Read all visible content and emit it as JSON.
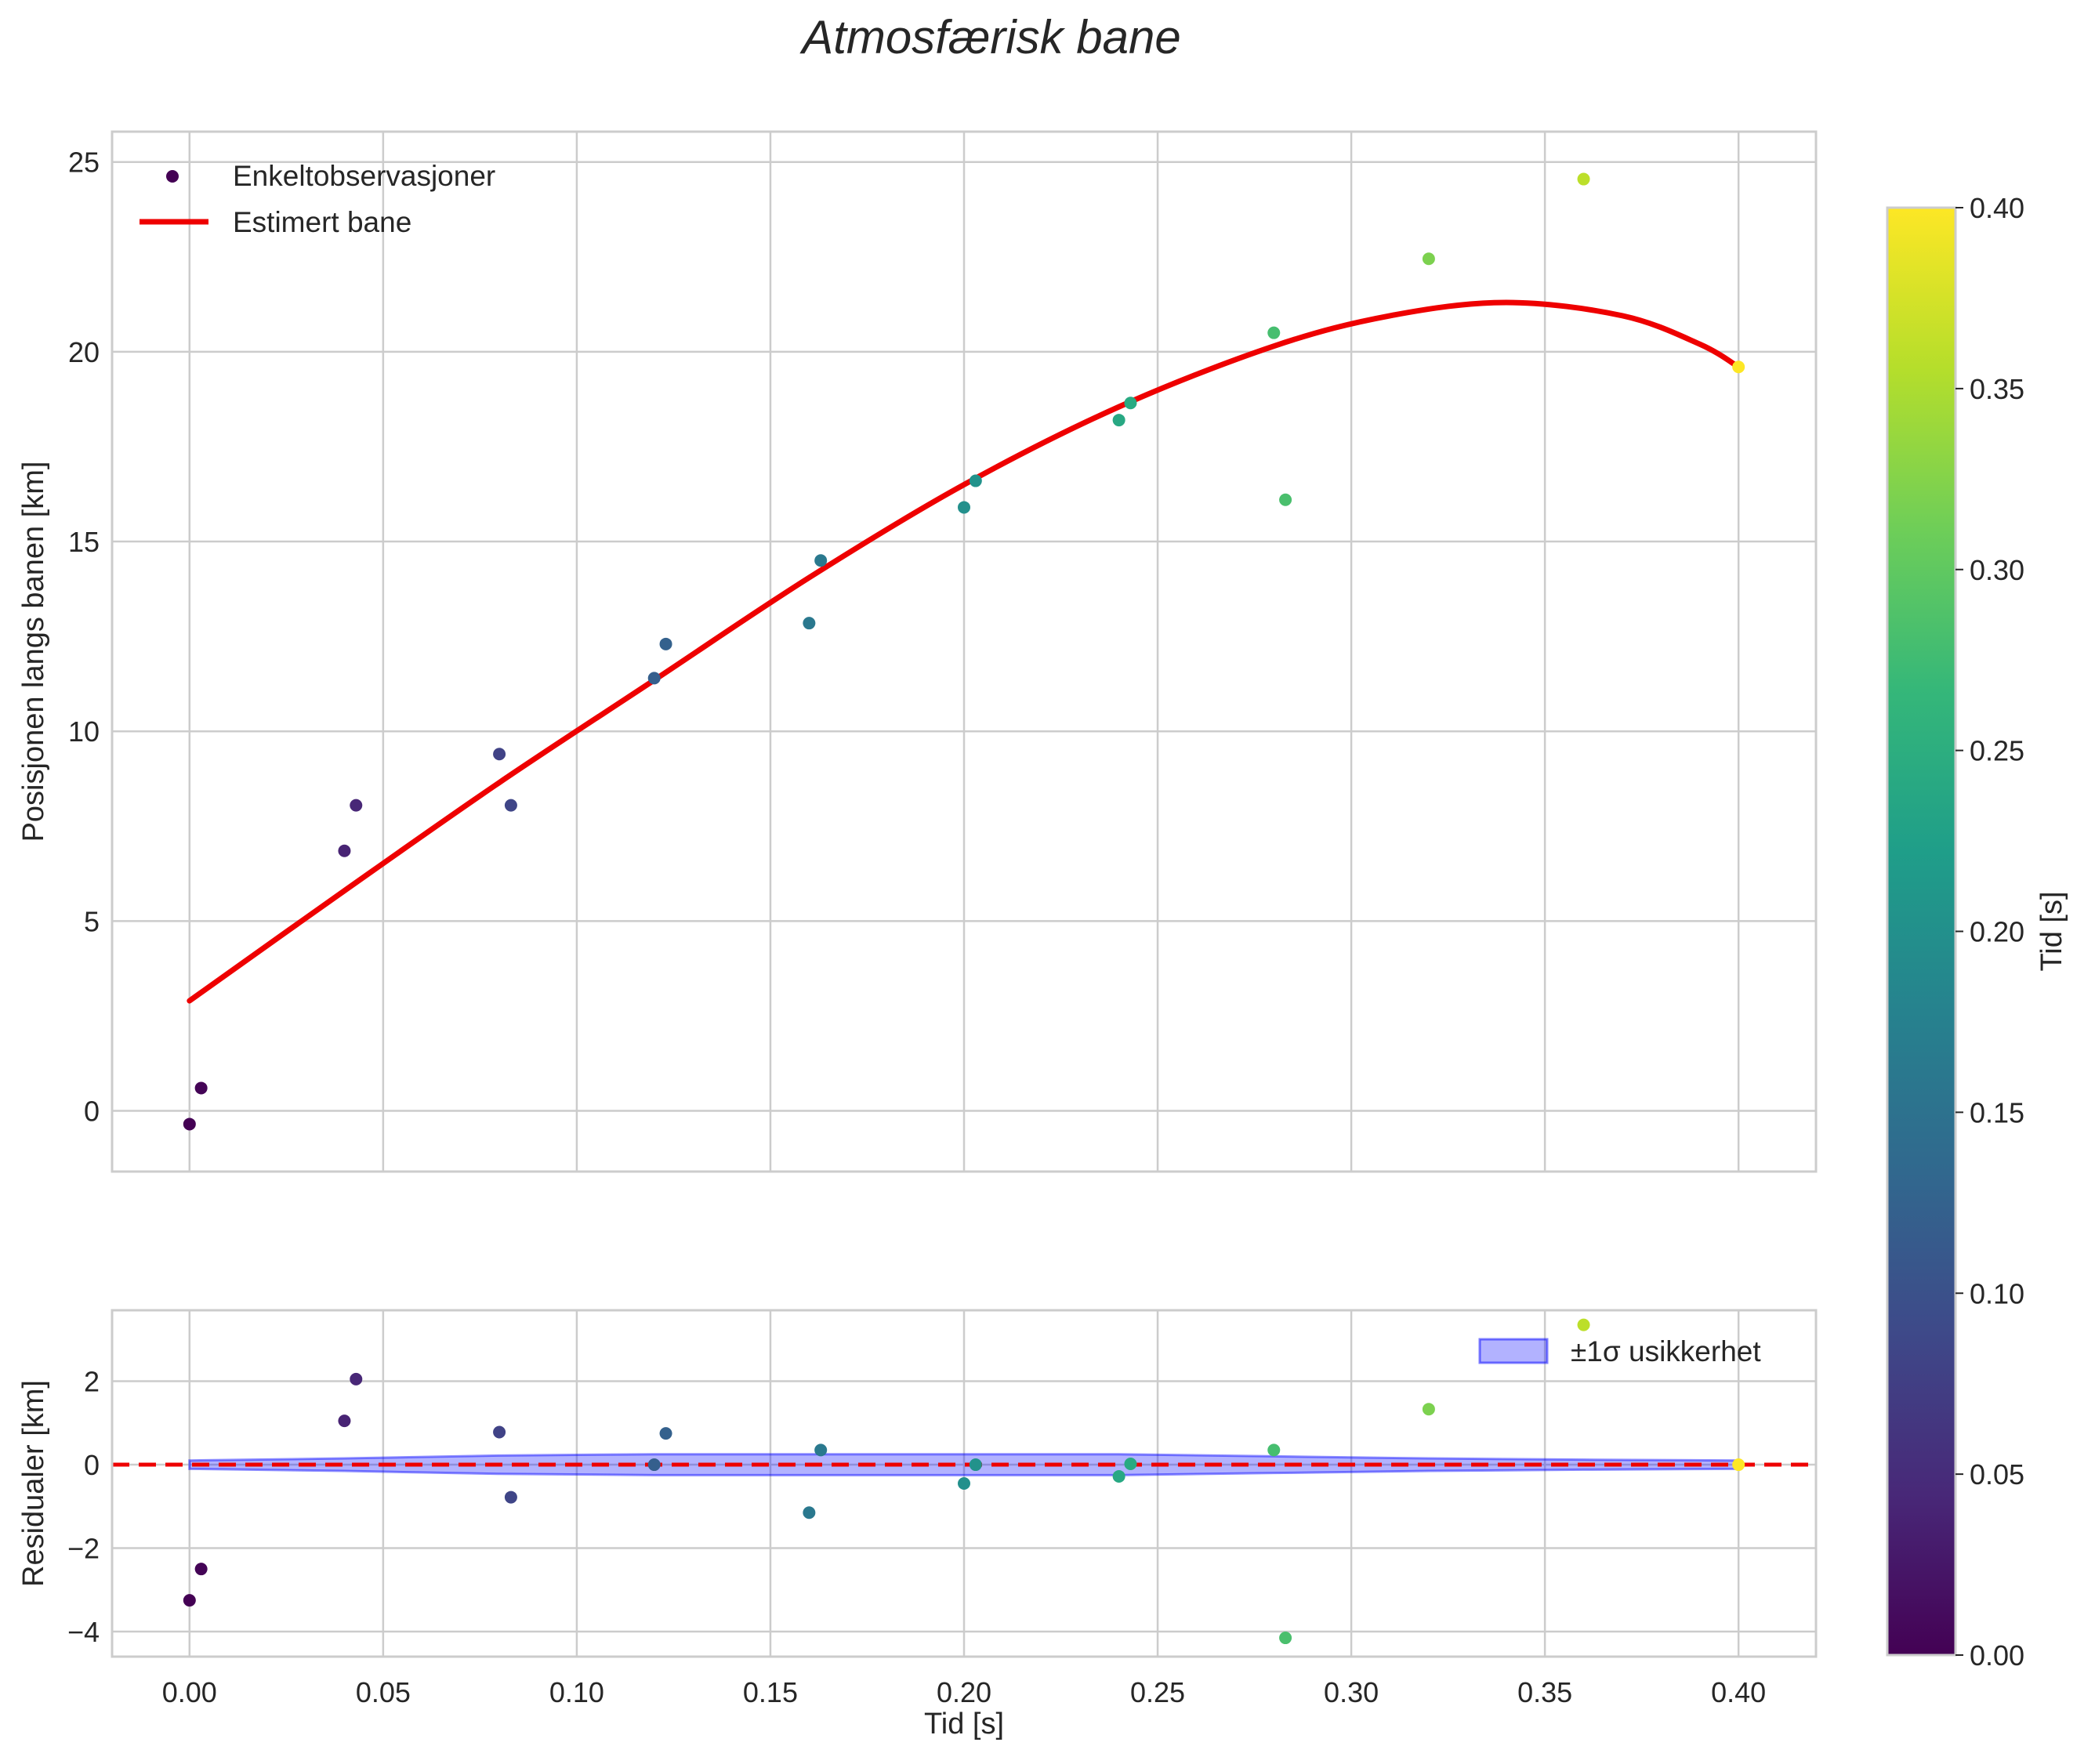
{
  "chart_data": {
    "type": "scatter",
    "title": "Atmosfærisk bane",
    "xlabel": "Tid [s]",
    "x_ticks": [
      "0.00",
      "0.05",
      "0.10",
      "0.15",
      "0.20",
      "0.25",
      "0.30",
      "0.35",
      "0.40"
    ],
    "xlim": [
      -0.02,
      0.42
    ],
    "grid": true,
    "main_panel": {
      "ylabel": "Posisjonen langs banen [km]",
      "ylim": [
        -1.6,
        25.8
      ],
      "y_ticks": [
        "0",
        "5",
        "10",
        "15",
        "20",
        "25"
      ],
      "legend": {
        "position": "upper left",
        "entries": [
          "Enkeltobservasjoner",
          "Estimert bane"
        ]
      },
      "observations": {
        "name": "Enkeltobservasjoner",
        "points": [
          {
            "t": 0.0,
            "y": -0.35
          },
          {
            "t": 0.003,
            "y": 0.6
          },
          {
            "t": 0.04,
            "y": 6.85
          },
          {
            "t": 0.043,
            "y": 8.05
          },
          {
            "t": 0.08,
            "y": 9.4
          },
          {
            "t": 0.083,
            "y": 8.05
          },
          {
            "t": 0.12,
            "y": 11.4
          },
          {
            "t": 0.123,
            "y": 12.3
          },
          {
            "t": 0.16,
            "y": 12.85
          },
          {
            "t": 0.163,
            "y": 14.5
          },
          {
            "t": 0.2,
            "y": 15.9
          },
          {
            "t": 0.203,
            "y": 16.6
          },
          {
            "t": 0.24,
            "y": 18.2
          },
          {
            "t": 0.243,
            "y": 18.65
          },
          {
            "t": 0.28,
            "y": 20.5
          },
          {
            "t": 0.283,
            "y": 16.1
          },
          {
            "t": 0.32,
            "y": 22.45
          },
          {
            "t": 0.36,
            "y": 24.55
          },
          {
            "t": 0.4,
            "y": 19.6
          }
        ]
      },
      "fit": {
        "name": "Estimert bane",
        "color": "#ee0000",
        "points": [
          {
            "t": 0.0,
            "y": 2.9
          },
          {
            "t": 0.04,
            "y": 5.8
          },
          {
            "t": 0.08,
            "y": 8.65
          },
          {
            "t": 0.12,
            "y": 11.35
          },
          {
            "t": 0.16,
            "y": 14.05
          },
          {
            "t": 0.2,
            "y": 16.5
          },
          {
            "t": 0.24,
            "y": 18.55
          },
          {
            "t": 0.28,
            "y": 20.15
          },
          {
            "t": 0.31,
            "y": 20.95
          },
          {
            "t": 0.34,
            "y": 21.3
          },
          {
            "t": 0.37,
            "y": 20.95
          },
          {
            "t": 0.39,
            "y": 20.2
          },
          {
            "t": 0.4,
            "y": 19.6
          }
        ]
      }
    },
    "residual_panel": {
      "ylabel": "Residualer [km]",
      "ylim": [
        -4.6,
        3.7
      ],
      "y_ticks": [
        "2",
        "0",
        "−2",
        "−4"
      ],
      "zero_line_color": "#ee0000",
      "band_color": "#0000ff",
      "legend": {
        "position": "upper right",
        "entries": [
          "±1σ usikkerhet"
        ]
      },
      "band": [
        {
          "t": 0.0,
          "s": 0.1
        },
        {
          "t": 0.04,
          "s": 0.15
        },
        {
          "t": 0.08,
          "s": 0.22
        },
        {
          "t": 0.12,
          "s": 0.25
        },
        {
          "t": 0.16,
          "s": 0.25
        },
        {
          "t": 0.2,
          "s": 0.25
        },
        {
          "t": 0.24,
          "s": 0.25
        },
        {
          "t": 0.28,
          "s": 0.2
        },
        {
          "t": 0.32,
          "s": 0.15
        },
        {
          "t": 0.36,
          "s": 0.12
        },
        {
          "t": 0.4,
          "s": 0.1
        }
      ],
      "points": [
        {
          "t": 0.0,
          "r": -3.25
        },
        {
          "t": 0.003,
          "r": -2.5
        },
        {
          "t": 0.04,
          "r": 1.05
        },
        {
          "t": 0.043,
          "r": 2.05
        },
        {
          "t": 0.08,
          "r": 0.78
        },
        {
          "t": 0.083,
          "r": -0.78
        },
        {
          "t": 0.12,
          "r": 0.0
        },
        {
          "t": 0.123,
          "r": 0.75
        },
        {
          "t": 0.16,
          "r": -1.15
        },
        {
          "t": 0.163,
          "r": 0.35
        },
        {
          "t": 0.2,
          "r": -0.45
        },
        {
          "t": 0.203,
          "r": 0.0
        },
        {
          "t": 0.24,
          "r": -0.28
        },
        {
          "t": 0.243,
          "r": 0.02
        },
        {
          "t": 0.28,
          "r": 0.35
        },
        {
          "t": 0.283,
          "r": -4.15
        },
        {
          "t": 0.32,
          "r": 1.33
        },
        {
          "t": 0.36,
          "r": 3.35
        },
        {
          "t": 0.4,
          "r": 0.0
        }
      ]
    },
    "colorbar": {
      "label": "Tid [s]",
      "range": [
        0.0,
        0.4
      ],
      "ticks": [
        "0.00",
        "0.05",
        "0.10",
        "0.15",
        "0.20",
        "0.25",
        "0.30",
        "0.35",
        "0.40"
      ],
      "colormap": "viridis",
      "stops": [
        "#440154",
        "#482878",
        "#3e4989",
        "#31688e",
        "#26828e",
        "#1f9e89",
        "#35b779",
        "#6ece58",
        "#b5de2b",
        "#fde725"
      ]
    }
  }
}
